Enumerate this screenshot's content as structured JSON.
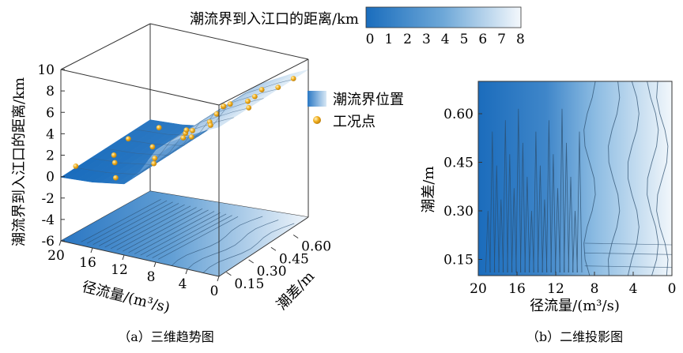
{
  "colorbar": {
    "title": "潮流界到入江口的距离/km",
    "ticks": [
      "0",
      "1",
      "2",
      "3",
      "4",
      "5",
      "6",
      "7",
      "8"
    ],
    "color_low": "#1a6dbd",
    "color_high": "#f4f8fc"
  },
  "legend": {
    "surface_label": "潮流界位置",
    "points_label": "工况点",
    "point_color": "#f2b01e"
  },
  "panel_a": {
    "caption": "（a）三维趋势图",
    "zlabel": "潮流界到入江口的距离/km",
    "xlabel": "径流量/(m³/s)",
    "ylabel": "潮差/m",
    "z_ticks": [
      "10",
      "8",
      "6",
      "4",
      "2",
      "0",
      "-2",
      "-4",
      "-6"
    ],
    "x_ticks": [
      "20",
      "16",
      "12",
      "8",
      "4",
      "0"
    ],
    "y_ticks": [
      "0.15",
      "0.30",
      "0.45",
      "0.60"
    ]
  },
  "panel_b": {
    "caption": "（b）二维投影图",
    "xlabel": "径流量/(m³/s)",
    "ylabel": "潮差/m",
    "x_ticks": [
      "20",
      "16",
      "12",
      "8",
      "4",
      "0"
    ],
    "y_ticks": [
      "0.60",
      "0.45",
      "0.30",
      "0.15"
    ]
  },
  "chart_data": [
    {
      "type": "surface3d",
      "title": "（a）三维趋势图",
      "xlabel": "径流量/(m³/s)",
      "ylabel": "潮差/m",
      "zlabel": "潮流界到入江口的距离/km",
      "x_range": [
        20,
        0
      ],
      "y_range": [
        0.1,
        0.7
      ],
      "z_range": [
        -6,
        10
      ],
      "surface_profile": {
        "runoff": [
          20,
          16,
          12,
          10,
          8,
          6,
          4,
          2,
          0
        ],
        "distance": [
          0.3,
          0.5,
          1.0,
          2.5,
          4.8,
          6.0,
          6.8,
          7.6,
          8.3
        ]
      },
      "scatter_points": [
        {
          "runoff": 20,
          "tide": 0.2,
          "distance": 0.2
        },
        {
          "runoff": 19,
          "tide": 0.5,
          "distance": 0.6
        },
        {
          "runoff": 18,
          "tide": 0.35,
          "distance": 0.4
        },
        {
          "runoff": 17,
          "tide": 0.6,
          "distance": 1.2
        },
        {
          "runoff": 16,
          "tide": 0.25,
          "distance": 0.8
        },
        {
          "runoff": 15,
          "tide": 0.45,
          "distance": 0.9
        },
        {
          "runoff": 14,
          "tide": 0.15,
          "distance": 0.5
        },
        {
          "runoff": 13,
          "tide": 0.55,
          "distance": 1.3
        },
        {
          "runoff": 12,
          "tide": 0.3,
          "distance": 1.0
        },
        {
          "runoff": 11,
          "tide": 0.5,
          "distance": 2.1
        },
        {
          "runoff": 10,
          "tide": 0.2,
          "distance": 2.6
        },
        {
          "runoff": 9,
          "tide": 0.4,
          "distance": 3.8
        },
        {
          "runoff": 8,
          "tide": 0.6,
          "distance": 4.9
        },
        {
          "runoff": 8,
          "tide": 0.3,
          "distance": 4.5
        },
        {
          "runoff": 7,
          "tide": 0.5,
          "distance": 5.6
        },
        {
          "runoff": 6,
          "tide": 0.2,
          "distance": 5.9
        },
        {
          "runoff": 6,
          "tide": 0.45,
          "distance": 6.2
        },
        {
          "runoff": 5,
          "tide": 0.35,
          "distance": 6.4
        },
        {
          "runoff": 4,
          "tide": 0.6,
          "distance": 6.9
        },
        {
          "runoff": 4,
          "tide": 0.25,
          "distance": 6.6
        },
        {
          "runoff": 3,
          "tide": 0.5,
          "distance": 7.2
        },
        {
          "runoff": 2,
          "tide": 0.15,
          "distance": 7.4
        },
        {
          "runoff": 2,
          "tide": 0.4,
          "distance": 7.7
        },
        {
          "runoff": 1,
          "tide": 0.55,
          "distance": 8.0
        },
        {
          "runoff": 0,
          "tide": 0.3,
          "distance": 8.2
        },
        {
          "runoff": 0,
          "tide": 0.6,
          "distance": 8.6
        }
      ]
    },
    {
      "type": "heatmap",
      "title": "（b）二维投影图",
      "xlabel": "径流量/(m³/s)",
      "ylabel": "潮差/m",
      "x_range": [
        20,
        0
      ],
      "y_range": [
        0.1,
        0.7
      ],
      "column_runoff": [
        20,
        16,
        12,
        10,
        8,
        6,
        4,
        2,
        0
      ],
      "column_distance": [
        0.3,
        0.5,
        1.0,
        2.5,
        4.8,
        6.0,
        6.8,
        7.6,
        8.3
      ]
    }
  ]
}
